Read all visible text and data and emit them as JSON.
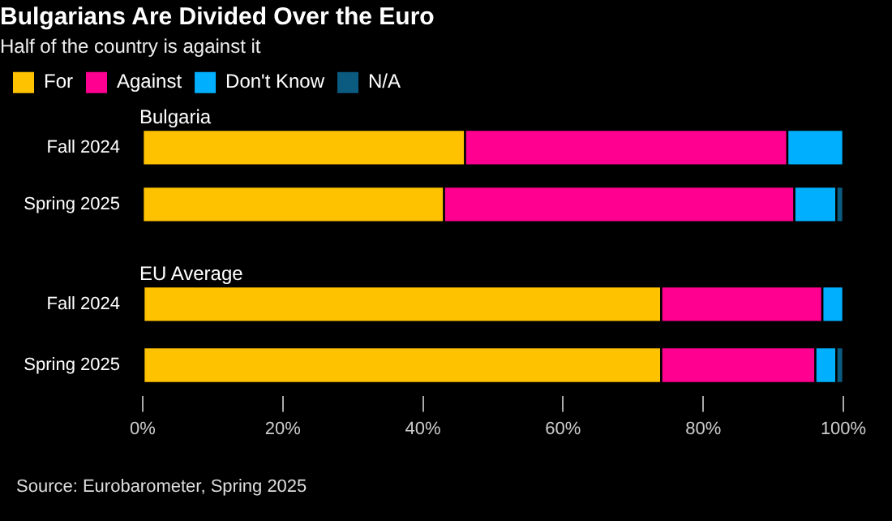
{
  "chart_data": [
    {
      "type": "bar",
      "orientation": "horizontal",
      "stacked": true,
      "title": "Bulgarians Are Divided Over the Euro",
      "subtitle": "Half of the country is against it",
      "annotations": [
        "Bulgaria"
      ],
      "categories": [
        "Fall 2024",
        "Spring 2025"
      ],
      "series": [
        {
          "name": "For",
          "color": "#ffc200",
          "values": [
            46,
            43
          ]
        },
        {
          "name": "Against",
          "color": "#ff0090",
          "values": [
            46,
            50
          ]
        },
        {
          "name": "Don't Know",
          "color": "#00b0ff",
          "values": [
            8,
            6
          ]
        },
        {
          "name": "N/A",
          "color": "#0b5a80",
          "values": [
            0,
            1
          ]
        }
      ],
      "xlim": [
        0,
        100
      ],
      "grid": false,
      "legend": "top left",
      "tick_labels": "y"
    },
    {
      "type": "bar",
      "orientation": "horizontal",
      "stacked": true,
      "title": "EU Average",
      "annotations": [
        "Source: Eurobarometer, Spring 2025"
      ],
      "categories": [
        "Fall 2024",
        "Spring 2025"
      ],
      "series": [
        {
          "name": "For",
          "color": "#ffc200",
          "values": [
            74,
            74
          ]
        },
        {
          "name": "Against",
          "color": "#ff0090",
          "values": [
            23,
            22
          ]
        },
        {
          "name": "Don't Know",
          "color": "#00b0ff",
          "values": [
            3,
            3
          ]
        },
        {
          "name": "N/A",
          "color": "#0b5a80",
          "values": [
            0,
            1
          ]
        }
      ],
      "xlim": [
        0,
        100
      ],
      "xticks": [
        {
          "value": 0,
          "label": "0%"
        },
        {
          "value": 20,
          "label": "20%"
        },
        {
          "value": 40,
          "label": "40%"
        },
        {
          "value": 60,
          "label": "60%"
        },
        {
          "value": 80,
          "label": "80%"
        },
        {
          "value": 100,
          "label": "100%"
        }
      ],
      "grid": false
    }
  ]
}
